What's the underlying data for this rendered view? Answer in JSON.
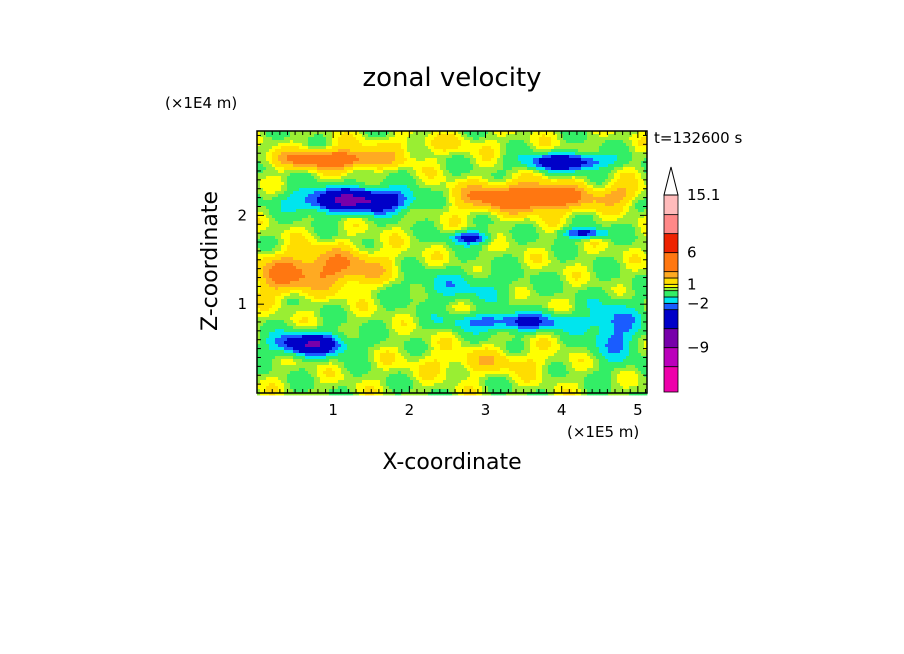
{
  "chart_data": {
    "type": "heatmap",
    "title": "zonal velocity",
    "xlabel": "X-coordinate",
    "ylabel": "Z-coordinate",
    "x_unit": "(×1E5 m)",
    "y_unit": "(×1E4 m)",
    "time_label": "t=132600 s",
    "xlim": [
      0,
      5.12
    ],
    "ylim": [
      0,
      2.95
    ],
    "x_ticks": [
      1,
      2,
      3,
      4,
      5
    ],
    "y_ticks": [
      1,
      2
    ],
    "colorbar": {
      "tick_labels": [
        "15.1",
        "6",
        "1",
        "−2",
        "−9"
      ],
      "tick_values": [
        15.1,
        6,
        1,
        -2,
        -9
      ],
      "levels": [
        {
          "min": -16,
          "max": -12,
          "color": "#ee00aa"
        },
        {
          "min": -12,
          "max": -9,
          "color": "#bb00bb"
        },
        {
          "min": -9,
          "max": -6,
          "color": "#7700aa"
        },
        {
          "min": -6,
          "max": -3,
          "color": "#0000c8"
        },
        {
          "min": -3,
          "max": -2,
          "color": "#1a5cff"
        },
        {
          "min": -2,
          "max": -1,
          "color": "#00e5ee"
        },
        {
          "min": -1,
          "max": 0,
          "color": "#33ee66"
        },
        {
          "min": 0,
          "max": 0.5,
          "color": "#99ee33"
        },
        {
          "min": 0.5,
          "max": 1,
          "color": "#ffff00"
        },
        {
          "min": 1,
          "max": 2,
          "color": "#ffdd00"
        },
        {
          "min": 2,
          "max": 3,
          "color": "#ffaa22"
        },
        {
          "min": 3,
          "max": 6,
          "color": "#ff7711"
        },
        {
          "min": 6,
          "max": 9,
          "color": "#ee2200"
        },
        {
          "min": 9,
          "max": 12,
          "color": "#ff8888"
        },
        {
          "min": 12,
          "max": 15.1,
          "color": "#ffbbbb"
        }
      ]
    },
    "features": [
      {
        "x": 1.0,
        "z": 2.63,
        "sx": 0.7,
        "sz": 0.1,
        "value": 4.5
      },
      {
        "x": 3.55,
        "z": 2.2,
        "sx": 0.85,
        "sz": 0.15,
        "value": 5.0
      },
      {
        "x": 1.3,
        "z": 2.17,
        "sx": 0.7,
        "sz": 0.13,
        "value": -7.0
      },
      {
        "x": 4.05,
        "z": 2.6,
        "sx": 0.5,
        "sz": 0.09,
        "value": -5.5
      },
      {
        "x": 0.7,
        "z": 0.55,
        "sx": 0.45,
        "sz": 0.12,
        "value": -6.0
      },
      {
        "x": 4.3,
        "z": 1.8,
        "sx": 0.28,
        "sz": 0.06,
        "value": -4.0
      },
      {
        "x": 3.4,
        "z": 0.8,
        "sx": 0.8,
        "sz": 0.1,
        "value": -3.5
      },
      {
        "x": 1.0,
        "z": 1.4,
        "sx": 0.7,
        "sz": 0.22,
        "value": 3.0
      },
      {
        "x": 2.6,
        "z": 1.2,
        "sx": 0.8,
        "sz": 0.18,
        "value": -1.5
      },
      {
        "x": 4.7,
        "z": 0.7,
        "sx": 0.35,
        "sz": 0.35,
        "value": -2.5
      },
      {
        "x": 3.0,
        "z": 0.35,
        "sx": 0.9,
        "sz": 0.14,
        "value": 1.2
      },
      {
        "x": 0.3,
        "z": 1.3,
        "sx": 0.35,
        "sz": 0.2,
        "value": 2.2
      },
      {
        "x": 2.2,
        "z": 2.8,
        "sx": 1.0,
        "sz": 0.1,
        "value": 0.8
      },
      {
        "x": 4.8,
        "z": 2.25,
        "sx": 0.25,
        "sz": 0.12,
        "value": 1.5
      },
      {
        "x": 2.8,
        "z": 1.75,
        "sx": 0.25,
        "sz": 0.07,
        "value": -4.0
      }
    ]
  }
}
